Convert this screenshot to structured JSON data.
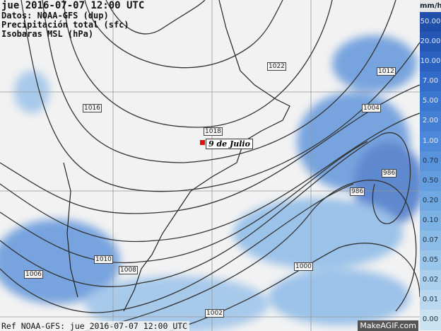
{
  "header": {
    "datetime": "jue 2016-07-07 12:00 UTC",
    "source": "Datos: NOAA-GFS (dup)",
    "layer1": "Precipitación total (sfc)",
    "layer2": "Isobaras MSL (hPa)"
  },
  "footer": {
    "ref": "Ref NOAA-GFS: jue 2016-07-07 12:00 UTC"
  },
  "watermark": "MakeAGIF.com",
  "city": {
    "name": "9 de Julio",
    "marker_color": "#e01010"
  },
  "isobar_labels": [
    "1022",
    "1012",
    "1004",
    "1016",
    "1018",
    "986",
    "986",
    "1010",
    "1008",
    "1006",
    "1000",
    "1002"
  ],
  "legend": {
    "unit": "mm/h",
    "values": [
      "50.00",
      "20.00",
      "10.00",
      "7.00",
      "5.00",
      "2.00",
      "1.00",
      "0.70",
      "0.50",
      "0.20",
      "0.10",
      "0.07",
      "0.05",
      "0.02",
      "0.01",
      "0.00"
    ],
    "colors": [
      "#1f4fa8",
      "#2558b4",
      "#2b62bf",
      "#336cc8",
      "#3b76cf",
      "#447fd4",
      "#4d89d8",
      "#5893dc",
      "#649ddf",
      "#70a8e2",
      "#7db2e5",
      "#8bbce8",
      "#9ac6eb",
      "#aad0ee",
      "#bad9f1",
      "#cbe2f3"
    ]
  }
}
